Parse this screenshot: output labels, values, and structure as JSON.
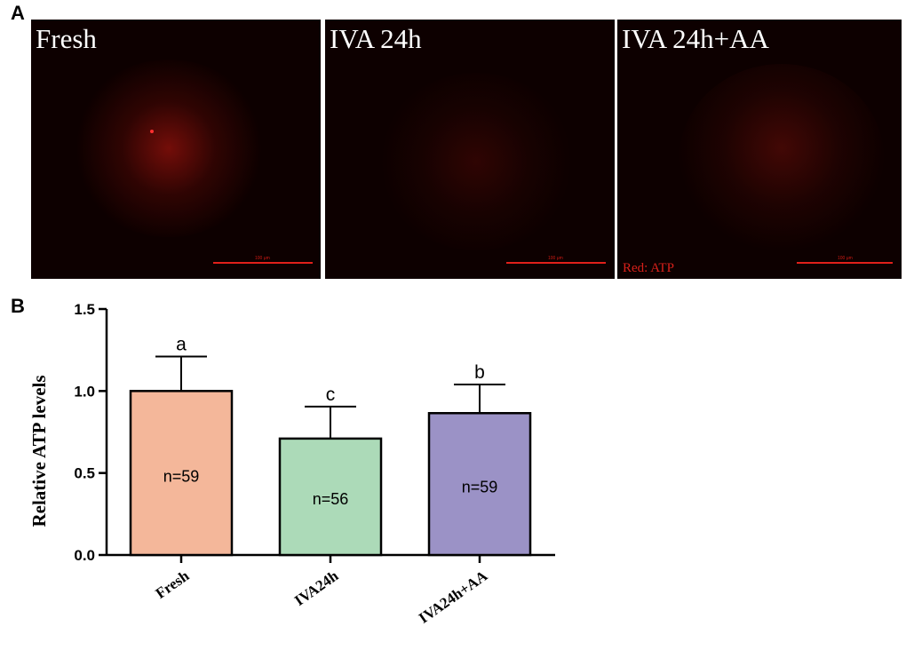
{
  "panels": {
    "a_label": "A",
    "b_label": "B"
  },
  "micrographs": [
    {
      "title": "Fresh",
      "scale_text": "100 μm",
      "glow_color": "#8a0f0a"
    },
    {
      "title": "IVA 24h",
      "scale_text": "100 μm",
      "glow_color": "#3f0806"
    },
    {
      "title": "IVA 24h+AA",
      "scale_text": "100 μm",
      "glow_color": "#4d0906",
      "stain_label": "Red: ATP"
    }
  ],
  "chart_data": {
    "type": "bar",
    "categories": [
      "Fresh",
      "IVA24h",
      "IVA24h+AA"
    ],
    "values": [
      1.0,
      0.71,
      0.865
    ],
    "errors": [
      0.21,
      0.195,
      0.175
    ],
    "significance": [
      "a",
      "c",
      "b"
    ],
    "n_labels": [
      "n=59",
      "n=56",
      "n=59"
    ],
    "colors": [
      "#f4b79a",
      "#acdab8",
      "#9b92c6"
    ],
    "ylabel": "Relative ATP levels",
    "xlabel": "",
    "ylim": [
      0,
      1.5
    ],
    "yticks": [
      "0.0",
      "0.5",
      "1.0",
      "1.5"
    ],
    "grid": false
  }
}
